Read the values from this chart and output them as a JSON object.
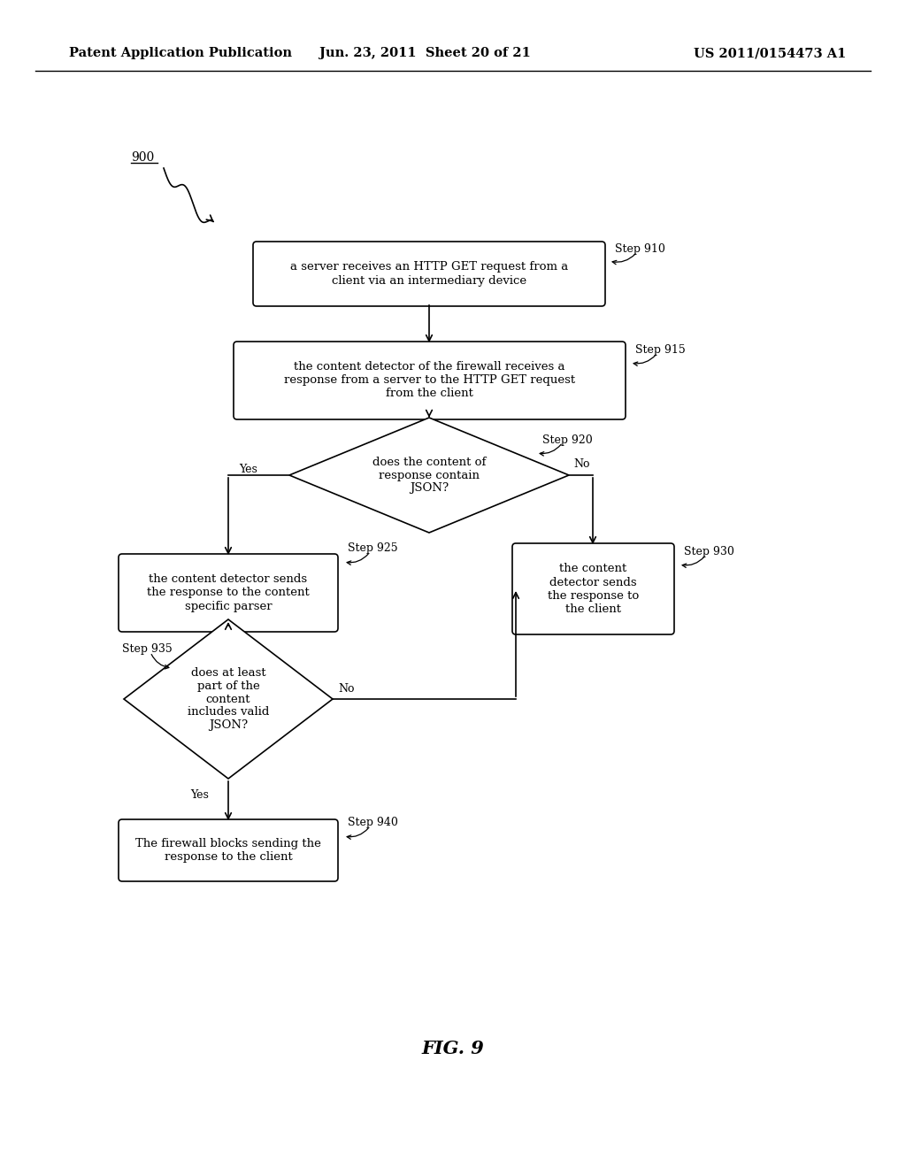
{
  "bg_color": "#ffffff",
  "header_left": "Patent Application Publication",
  "header_mid": "Jun. 23, 2011  Sheet 20 of 21",
  "header_right": "US 2011/0154473 A1",
  "fig_label": "FIG. 9",
  "ref_num": "900"
}
